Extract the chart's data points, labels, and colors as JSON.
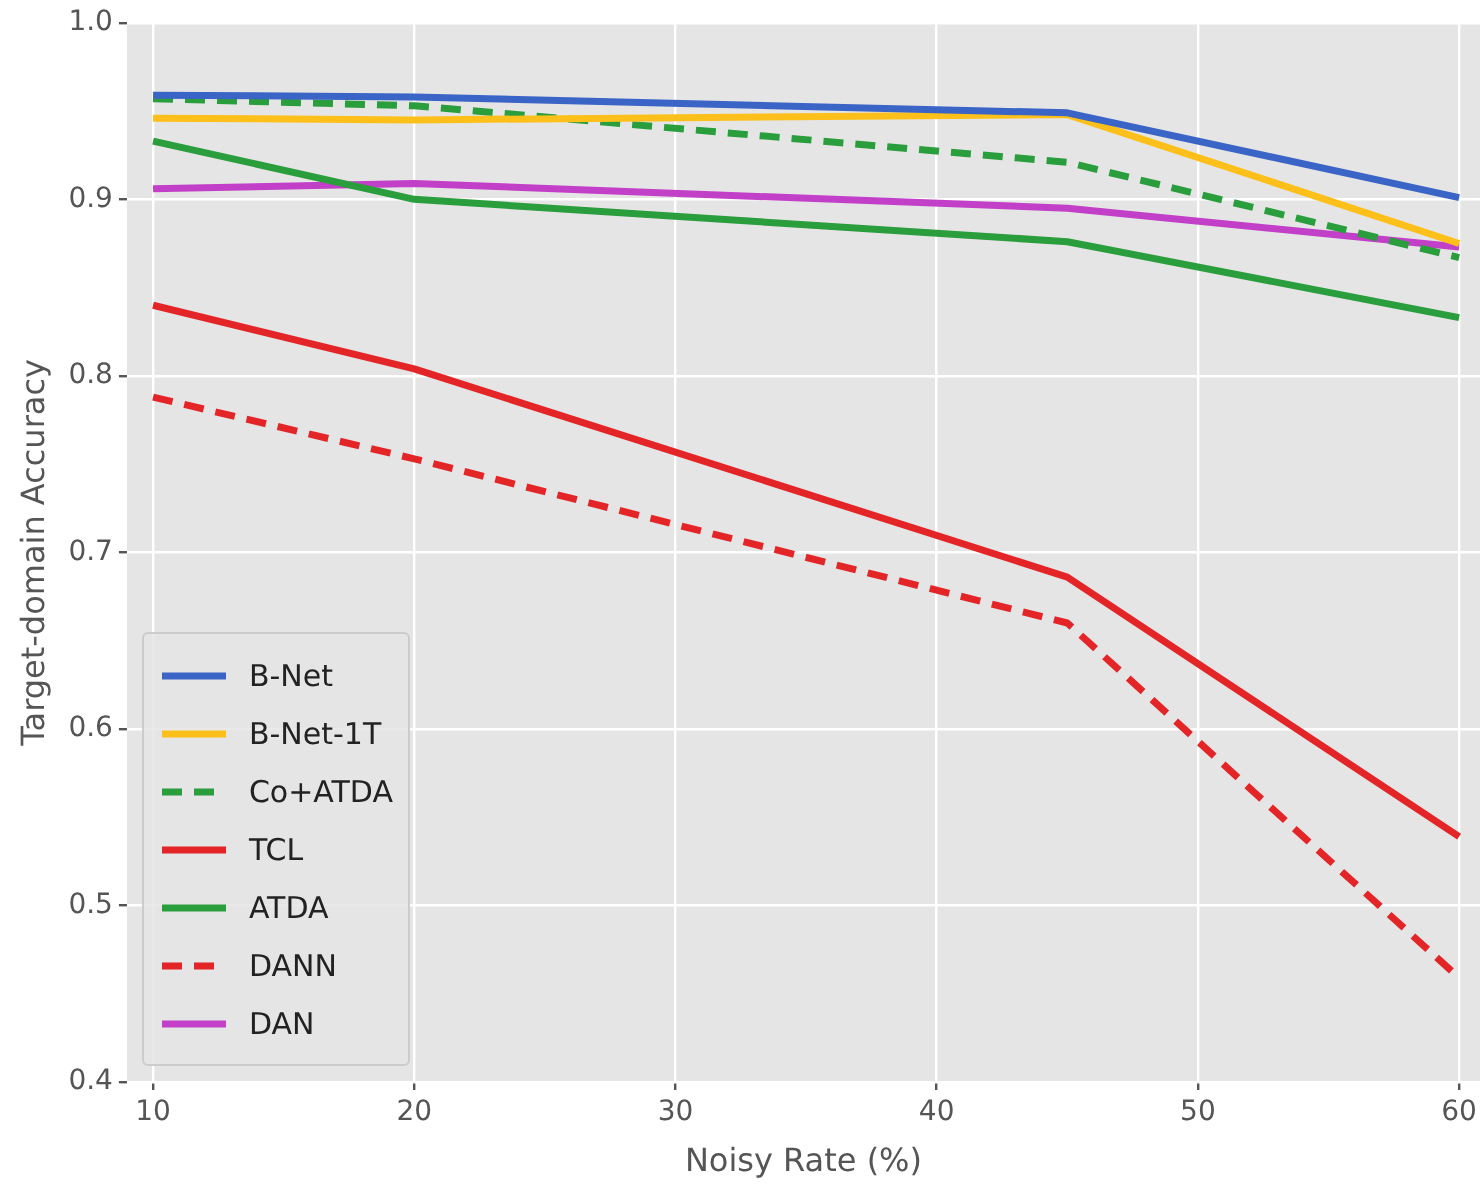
{
  "chart_data": {
    "type": "line",
    "xlabel": "Noisy Rate (%)",
    "ylabel": "Target-domain Accuracy",
    "x": [
      10,
      20,
      45,
      60
    ],
    "xlim": [
      9,
      60.8
    ],
    "xticks": [
      10,
      20,
      30,
      40,
      50,
      60
    ],
    "ylim": [
      0.4,
      1.0
    ],
    "yticks": [
      0.4,
      0.5,
      0.6,
      0.7,
      0.8,
      0.9,
      {
        "value": 1,
        "label": "1.0"
      }
    ],
    "grid": true,
    "legend": "bottom left",
    "marker": "none",
    "series": [
      {
        "name": "B-Net",
        "color": "#3a64c6",
        "values": [
          0.959,
          0.958,
          0.949,
          0.901
        ]
      },
      {
        "name": "B-Net-1T",
        "color": "#fdbf1a",
        "values": [
          0.946,
          0.945,
          0.948,
          0.875
        ]
      },
      {
        "name": "Co+ATDA",
        "color": "#2a9d3c",
        "values": [
          0.957,
          0.953,
          0.921,
          0.867
        ],
        "line_style": "dashed"
      },
      {
        "name": "TCL",
        "color": "#e42528",
        "values": [
          0.84,
          0.804,
          0.686,
          0.539
        ]
      },
      {
        "name": "ATDA",
        "color": "#2a9d3c",
        "values": [
          0.933,
          0.9,
          0.876,
          0.833
        ]
      },
      {
        "name": "DANN",
        "color": "#e42528",
        "values": [
          0.788,
          0.753,
          0.66,
          0.459
        ],
        "line_style": "dashed"
      },
      {
        "name": "DAN",
        "color": "#c23fc8",
        "values": [
          0.906,
          0.909,
          0.895,
          0.873
        ]
      }
    ]
  }
}
